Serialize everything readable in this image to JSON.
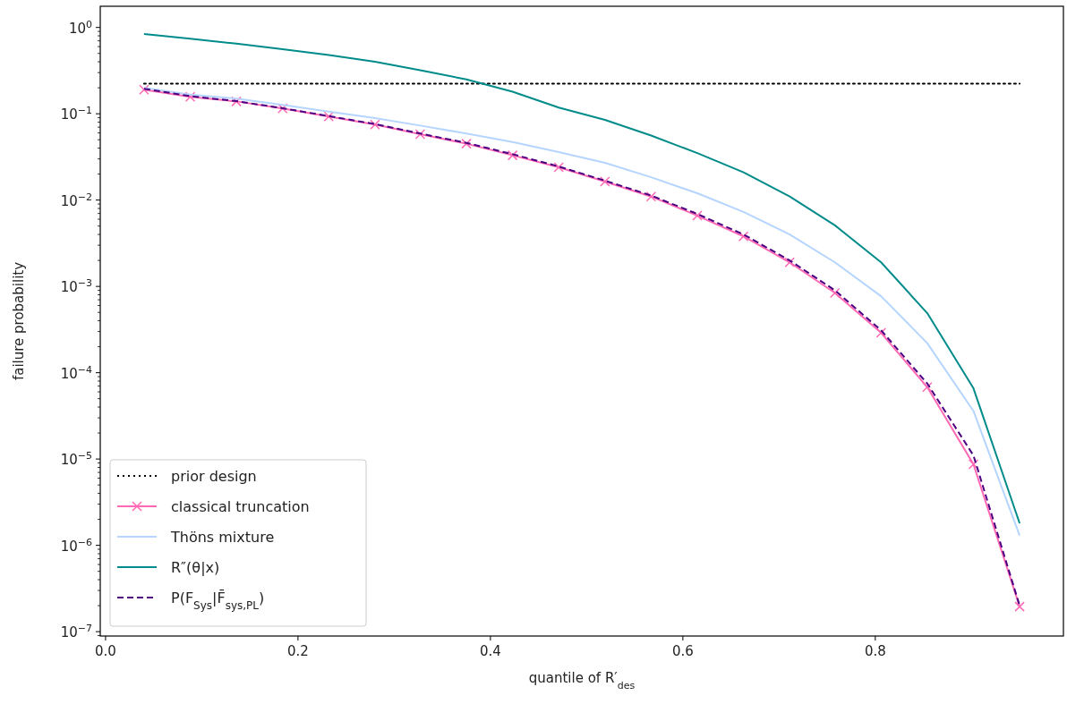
{
  "chart_data": {
    "type": "line",
    "xlabel": "quantile of R′$_{des}$",
    "ylabel": "failure probability",
    "log": "y",
    "legend": "bottom left",
    "grid": false,
    "xlim": [
      -0.0055,
      0.9955
    ],
    "xticks": [
      {
        "value": 0,
        "label": "0.0"
      },
      {
        "value": 0.2,
        "label": "0.2"
      },
      {
        "value": 0.4,
        "label": "0.4"
      },
      {
        "value": 0.6,
        "label": "0.6"
      },
      {
        "value": 0.8,
        "label": "0.8"
      }
    ],
    "ylim": [
      8.9e-08,
      1.76
    ],
    "yticks": [
      {
        "value": 1e-07,
        "label": "10$^{−7}$"
      },
      {
        "value": 1e-06,
        "label": "10$^{−6}$"
      },
      {
        "value": 1e-05,
        "label": "10$^{−5}$"
      },
      {
        "value": 0.0001,
        "label": "10$^{−4}$"
      },
      {
        "value": 0.001,
        "label": "10$^{−3}$"
      },
      {
        "value": 0.01,
        "label": "10$^{−2}$"
      },
      {
        "value": 0.1,
        "label": "10$^{−1}$"
      },
      {
        "value": 1,
        "label": "10$^{0}$"
      }
    ],
    "x": [
      0.04,
      0.088,
      0.136,
      0.184,
      0.232,
      0.28,
      0.327,
      0.375,
      0.423,
      0.471,
      0.519,
      0.567,
      0.615,
      0.663,
      0.711,
      0.758,
      0.806,
      0.854,
      0.902,
      0.95
    ],
    "series": [
      {
        "name": "prior design",
        "color": "#000000",
        "line_style": "dotted",
        "marker": "none",
        "x": [
          0.04,
          0.95
        ],
        "values": [
          0.224,
          0.224
        ]
      },
      {
        "name": "classical truncation",
        "color": "#ff69b4",
        "line_style": "solid",
        "marker": "cross",
        "values": [
          0.19,
          0.157,
          0.139,
          0.115,
          0.093,
          0.075,
          0.058,
          0.045,
          0.033,
          0.024,
          0.0164,
          0.011,
          0.0066,
          0.0038,
          0.0019,
          0.00084,
          0.00029,
          6.8e-05,
          8.7e-06,
          1.95e-07
        ]
      },
      {
        "name": "Thöns mixture",
        "color": "#b5d5ff",
        "line_style": "solid",
        "marker": "none",
        "values": [
          0.2,
          0.167,
          0.15,
          0.127,
          0.106,
          0.089,
          0.073,
          0.059,
          0.047,
          0.036,
          0.027,
          0.0184,
          0.012,
          0.0073,
          0.004,
          0.0019,
          0.00077,
          0.00022,
          3.6e-05,
          1.3e-06
        ]
      },
      {
        "name": "R″(θ|x)",
        "color": "#008b8b",
        "line_style": "solid",
        "marker": "none",
        "values": [
          0.84,
          0.74,
          0.65,
          0.56,
          0.48,
          0.4,
          0.32,
          0.25,
          0.18,
          0.118,
          0.085,
          0.056,
          0.035,
          0.021,
          0.011,
          0.0051,
          0.0019,
          0.00049,
          6.6e-05,
          1.8e-06
        ]
      },
      {
        "name": "P(F$_{Sys}$|F̄$_{sys,PL}$)",
        "color": "#4b0082",
        "line_style": "dashed",
        "marker": "none",
        "values": [
          0.195,
          0.16,
          0.14,
          0.116,
          0.094,
          0.076,
          0.059,
          0.046,
          0.034,
          0.0245,
          0.0168,
          0.0113,
          0.0069,
          0.004,
          0.002,
          0.0009,
          0.00031,
          7.5e-05,
          1.1e-05,
          2e-07
        ]
      }
    ]
  }
}
